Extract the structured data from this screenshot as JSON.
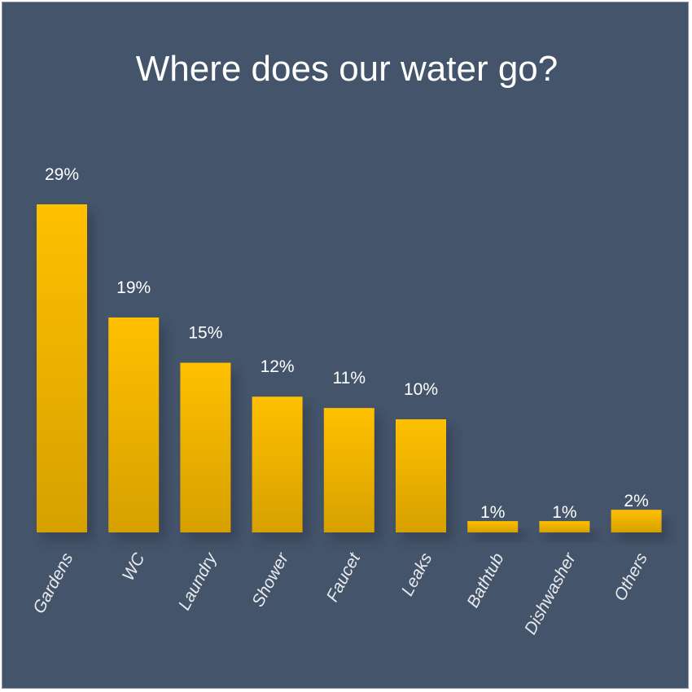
{
  "chart_data": {
    "type": "bar",
    "title": "Where does our water go?",
    "categories": [
      "Gardens",
      "WC",
      "Laundry",
      "Shower",
      "Faucet",
      "Leaks",
      "Bathtub",
      "Dishwasher",
      "Others"
    ],
    "values": [
      29,
      19,
      15,
      12,
      11,
      10,
      1,
      1,
      2
    ],
    "data_labels": [
      "29%",
      "19%",
      "15%",
      "12%",
      "11%",
      "10%",
      "1%",
      "1%",
      "2%"
    ],
    "xlabel": "",
    "ylabel": "",
    "ylim": [
      0,
      29
    ],
    "grid": false,
    "legend": "none",
    "colors": {
      "background": "#44546a",
      "bar_top": "#ffc000",
      "bar_bottom": "#d6a000",
      "text": "#ffffff"
    }
  }
}
